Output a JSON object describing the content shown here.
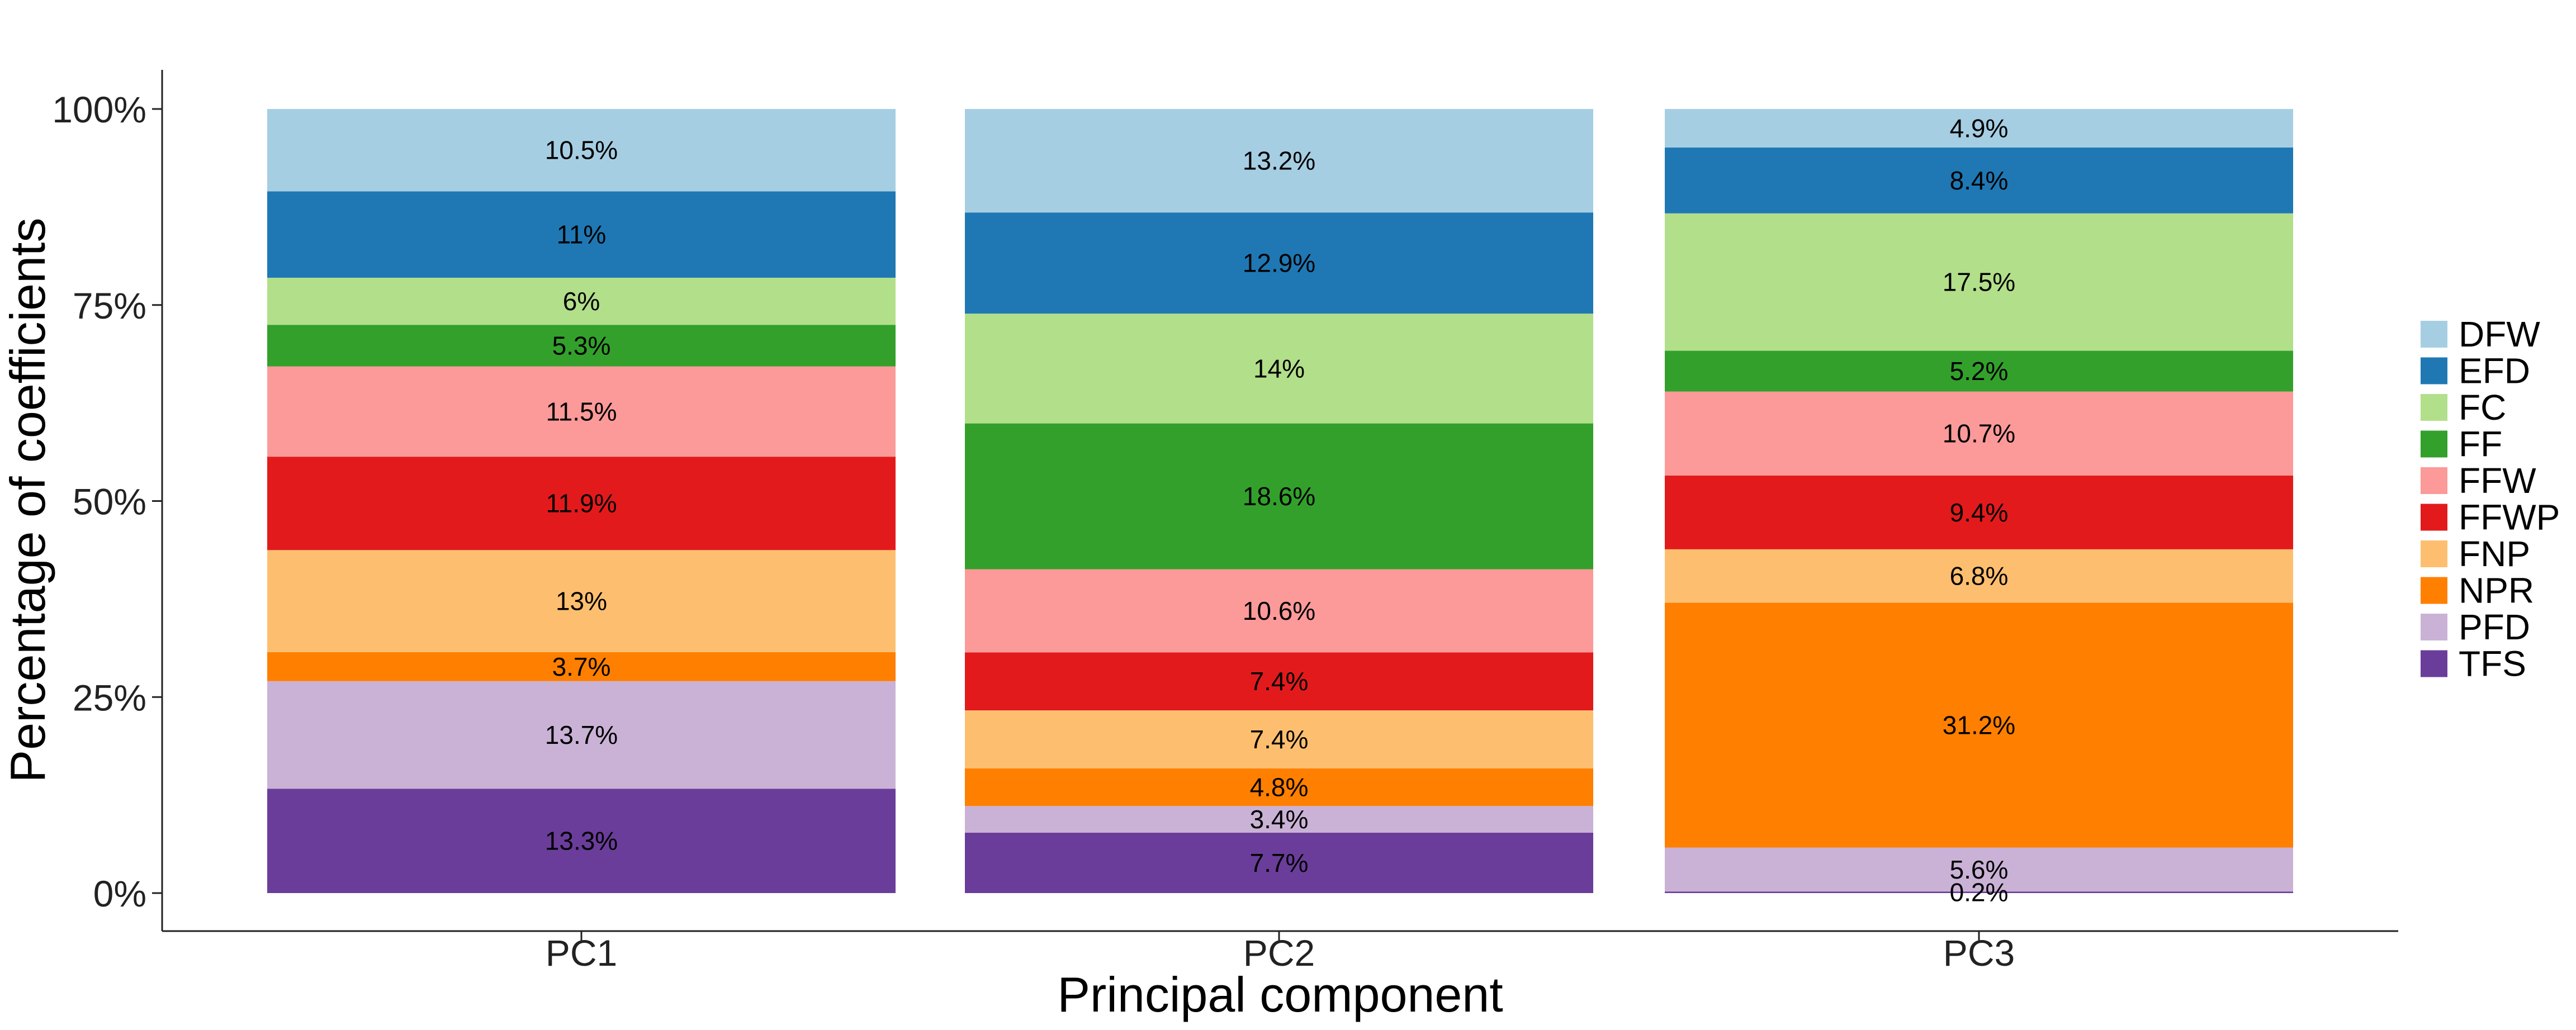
{
  "chart_data": {
    "type": "bar",
    "stacked": true,
    "percent_stacked": true,
    "categories": [
      "PC1",
      "PC2",
      "PC3"
    ],
    "xlabel": "Principal component",
    "ylabel": "Percentage of coefficients",
    "ylim": [
      0,
      100
    ],
    "yticks": [
      0,
      25,
      50,
      75,
      100
    ],
    "yticklabels": [
      "0%",
      "25%",
      "50%",
      "75%",
      "100%"
    ],
    "grid": false,
    "legend_position": "right",
    "series": [
      {
        "name": "TFS",
        "color": "#6A3D9A",
        "values": [
          13.3,
          7.7,
          0.2
        ],
        "labels": [
          "13.3%",
          "7.7%",
          "0.2%"
        ]
      },
      {
        "name": "PFD",
        "color": "#CAB2D6",
        "values": [
          13.7,
          3.4,
          5.6
        ],
        "labels": [
          "13.7%",
          "3.4%",
          "5.6%"
        ]
      },
      {
        "name": "NPR",
        "color": "#FF7F00",
        "values": [
          3.7,
          4.8,
          31.2
        ],
        "labels": [
          "3.7%",
          "4.8%",
          "31.2%"
        ]
      },
      {
        "name": "FNP",
        "color": "#FDBF6F",
        "values": [
          13,
          7.4,
          6.8
        ],
        "labels": [
          "13%",
          "7.4%",
          "6.8%"
        ]
      },
      {
        "name": "FFWP",
        "color": "#E31A1C",
        "values": [
          11.9,
          7.4,
          9.4
        ],
        "labels": [
          "11.9%",
          "7.4%",
          "9.4%"
        ]
      },
      {
        "name": "FFW",
        "color": "#FB9A99",
        "values": [
          11.5,
          10.6,
          10.7
        ],
        "labels": [
          "11.5%",
          "10.6%",
          "10.7%"
        ]
      },
      {
        "name": "FF",
        "color": "#33A02C",
        "values": [
          5.3,
          18.6,
          5.2
        ],
        "labels": [
          "5.3%",
          "18.6%",
          "5.2%"
        ]
      },
      {
        "name": "FC",
        "color": "#B2DF8A",
        "values": [
          6,
          14,
          17.5
        ],
        "labels": [
          "6%",
          "14%",
          "17.5%"
        ]
      },
      {
        "name": "EFD",
        "color": "#1F78B4",
        "values": [
          11,
          12.9,
          8.4
        ],
        "labels": [
          "11%",
          "12.9%",
          "8.4%"
        ]
      },
      {
        "name": "DFW",
        "color": "#A6CEE3",
        "values": [
          10.5,
          13.2,
          4.9
        ],
        "labels": [
          "10.5%",
          "13.2%",
          "4.9%"
        ]
      }
    ],
    "legend_order": [
      "DFW",
      "EFD",
      "FC",
      "FF",
      "FFW",
      "FFWP",
      "FNP",
      "NPR",
      "PFD",
      "TFS"
    ]
  }
}
